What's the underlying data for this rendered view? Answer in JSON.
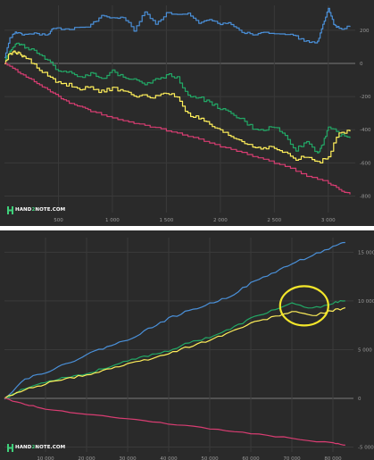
{
  "watermark": {
    "pre": "HAND",
    "mid": "2",
    "post": "NOTE.COM"
  },
  "colors": {
    "blue": "#4a90d9",
    "green": "#22a866",
    "yellow": "#ffef5a",
    "pink": "#d83d72",
    "highlight_ring": "#f3e62a"
  },
  "chart_data": [
    {
      "type": "line",
      "title": "",
      "xlabel": "",
      "ylabel": "",
      "xlim": [
        0,
        3250
      ],
      "ylim": [
        -900,
        350
      ],
      "x_ticks": [
        500,
        1000,
        1500,
        2000,
        2500,
        3000
      ],
      "x_tick_labels": [
        "500",
        "1 000",
        "1 500",
        "2 000",
        "2 500",
        "3 000"
      ],
      "y_ticks": [
        200,
        0,
        -200,
        -400,
        -600,
        -800
      ],
      "y_tick_labels": [
        "200",
        "0",
        "-200",
        "-400",
        "-600",
        "-800"
      ],
      "grid": true,
      "legend": "none",
      "series": [
        {
          "color": "blue",
          "x": [
            0,
            50,
            100,
            150,
            200,
            300,
            400,
            450,
            600,
            800,
            900,
            1000,
            1100,
            1200,
            1300,
            1400,
            1500,
            1700,
            1800,
            1900,
            2000,
            2100,
            2200,
            2300,
            2400,
            2600,
            2700,
            2800,
            2900,
            2950,
            3000,
            3050,
            3100,
            3200
          ],
          "y": [
            30,
            150,
            190,
            175,
            175,
            180,
            170,
            210,
            210,
            230,
            290,
            270,
            280,
            200,
            310,
            240,
            300,
            300,
            240,
            260,
            240,
            240,
            190,
            175,
            190,
            180,
            160,
            130,
            130,
            230,
            330,
            240,
            210,
            220
          ]
        },
        {
          "color": "green",
          "x": [
            0,
            50,
            100,
            150,
            200,
            300,
            400,
            500,
            600,
            700,
            800,
            900,
            1000,
            1100,
            1200,
            1300,
            1400,
            1500,
            1600,
            1700,
            1800,
            1900,
            2000,
            2100,
            2200,
            2300,
            2400,
            2500,
            2600,
            2700,
            2800,
            2900,
            2950,
            3000,
            3100,
            3200
          ],
          "y": [
            10,
            80,
            120,
            110,
            100,
            60,
            10,
            -40,
            -50,
            -80,
            -60,
            -100,
            -50,
            -80,
            -90,
            -120,
            -100,
            -70,
            -80,
            -200,
            -200,
            -240,
            -270,
            -310,
            -340,
            -390,
            -400,
            -380,
            -440,
            -520,
            -470,
            -540,
            -480,
            -380,
            -430,
            -450
          ]
        },
        {
          "color": "yellow",
          "x": [
            0,
            50,
            100,
            150,
            200,
            300,
            400,
            500,
            600,
            700,
            800,
            900,
            1000,
            1100,
            1200,
            1300,
            1400,
            1500,
            1600,
            1700,
            1800,
            1900,
            2000,
            2100,
            2200,
            2300,
            2400,
            2500,
            2600,
            2700,
            2800,
            2900,
            3000,
            3100,
            3200
          ],
          "y": [
            0,
            60,
            70,
            50,
            40,
            -30,
            -70,
            -120,
            -130,
            -150,
            -150,
            -170,
            -150,
            -170,
            -190,
            -200,
            -200,
            -180,
            -200,
            -310,
            -330,
            -370,
            -410,
            -440,
            -470,
            -500,
            -510,
            -510,
            -540,
            -580,
            -560,
            -600,
            -560,
            -420,
            -410
          ]
        },
        {
          "color": "pink",
          "x": [
            0,
            100,
            200,
            300,
            400,
            500,
            600,
            700,
            800,
            1000,
            1200,
            1400,
            1600,
            1800,
            2000,
            2200,
            2400,
            2600,
            2800,
            3000,
            3100,
            3200
          ],
          "y": [
            0,
            -40,
            -80,
            -120,
            -160,
            -200,
            -240,
            -260,
            -290,
            -330,
            -360,
            -390,
            -420,
            -460,
            -500,
            -540,
            -580,
            -620,
            -680,
            -720,
            -760,
            -790
          ]
        }
      ]
    },
    {
      "type": "line",
      "title": "",
      "xlabel": "",
      "ylabel": "",
      "xlim": [
        0,
        85000
      ],
      "ylim": [
        -5500,
        16500
      ],
      "x_ticks": [
        10000,
        20000,
        30000,
        40000,
        50000,
        60000,
        70000,
        80000
      ],
      "x_tick_labels": [
        "10 000",
        "20 000",
        "30 000",
        "40 000",
        "50 000",
        "60 000",
        "70 000",
        "80 000"
      ],
      "y_ticks": [
        15000,
        10000,
        5000,
        0,
        -5000
      ],
      "y_tick_labels": [
        "15 000",
        "10 000",
        "5 000",
        "0",
        "-5 000"
      ],
      "grid": true,
      "legend": "none",
      "series": [
        {
          "color": "blue",
          "x": [
            0,
            5000,
            10000,
            15000,
            20000,
            25000,
            30000,
            35000,
            40000,
            45000,
            50000,
            55000,
            60000,
            65000,
            70000,
            75000,
            80000,
            83000
          ],
          "y": [
            0,
            2000,
            2700,
            3500,
            4500,
            5300,
            6000,
            7100,
            8200,
            9000,
            9700,
            10500,
            11800,
            12800,
            13800,
            14700,
            15500,
            16000
          ]
        },
        {
          "color": "green",
          "x": [
            0,
            5000,
            10000,
            15000,
            20000,
            25000,
            30000,
            35000,
            40000,
            45000,
            50000,
            55000,
            60000,
            65000,
            70000,
            75000,
            80000,
            83000
          ],
          "y": [
            0,
            1000,
            1700,
            2200,
            2500,
            3200,
            3800,
            4400,
            4900,
            5700,
            6300,
            7100,
            8200,
            9000,
            9700,
            9200,
            9800,
            10000
          ]
        },
        {
          "color": "yellow",
          "x": [
            0,
            5000,
            10000,
            15000,
            20000,
            25000,
            30000,
            35000,
            40000,
            45000,
            50000,
            55000,
            60000,
            65000,
            70000,
            75000,
            80000,
            83000
          ],
          "y": [
            0,
            900,
            1500,
            2000,
            2400,
            3000,
            3500,
            4000,
            4600,
            5300,
            6000,
            6800,
            7700,
            8300,
            8900,
            8500,
            9000,
            9300
          ]
        },
        {
          "color": "pink",
          "x": [
            0,
            5000,
            10000,
            20000,
            30000,
            40000,
            50000,
            60000,
            70000,
            80000,
            83000
          ],
          "y": [
            0,
            -600,
            -1100,
            -1600,
            -2100,
            -2600,
            -3100,
            -3600,
            -4100,
            -4600,
            -4800
          ]
        }
      ]
    }
  ]
}
